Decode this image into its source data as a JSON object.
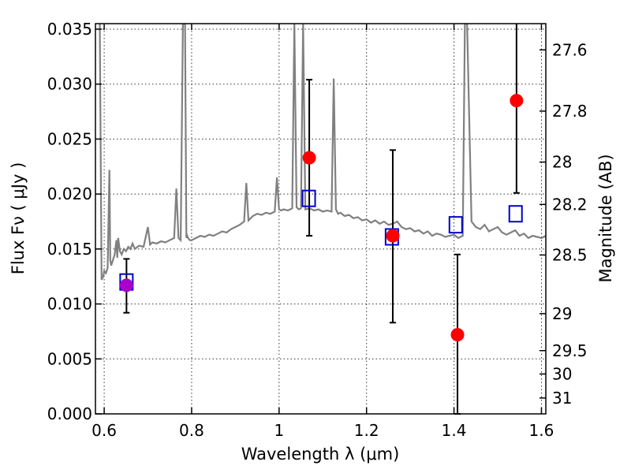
{
  "chart_data": {
    "type": "scatter",
    "xlabel": "Wavelength  λ (μm)",
    "ylabel": "Flux  Fν  ( μJy )",
    "ylabel_right": "Magnitude (AB)",
    "xlim": [
      0.58,
      1.61
    ],
    "ylim": [
      0.0,
      0.0355
    ],
    "x_ticks": [
      0.6,
      0.8,
      1.0,
      1.2,
      1.4,
      1.6
    ],
    "x_tick_labels": [
      "0.6",
      "0.8",
      "1",
      "1.2",
      "1.4",
      "1.6"
    ],
    "y_ticks": [
      0.0,
      0.005,
      0.01,
      0.015,
      0.02,
      0.025,
      0.03,
      0.035
    ],
    "y_tick_labels": [
      "0.000",
      "0.005",
      "0.010",
      "0.015",
      "0.020",
      "0.025",
      "0.030",
      "0.035"
    ],
    "right_ticks": [
      {
        "label": "27.6",
        "value": 27.6
      },
      {
        "label": "27.8",
        "value": 27.8
      },
      {
        "label": "28",
        "value": 28.0
      },
      {
        "label": "28.2",
        "value": 28.2
      },
      {
        "label": "28.5",
        "value": 28.5
      },
      {
        "label": "29",
        "value": 29.0
      },
      {
        "label": "29.5",
        "value": 29.5
      },
      {
        "label": "30",
        "value": 30.0
      },
      {
        "label": "31",
        "value": 31.0
      }
    ],
    "grid": true,
    "colors": {
      "spectrum": "#808080",
      "observed": "#ff0000",
      "observed_first": "#aa00cc",
      "model": "#0000cc",
      "errorbar": "#000000"
    },
    "spectrum": {
      "x": [
        0.59,
        0.594,
        0.598,
        0.6,
        0.604,
        0.608,
        0.612,
        0.614,
        0.616,
        0.62,
        0.624,
        0.628,
        0.63,
        0.632,
        0.636,
        0.64,
        0.645,
        0.65,
        0.655,
        0.66,
        0.665,
        0.67,
        0.68,
        0.69,
        0.7,
        0.705,
        0.71,
        0.72,
        0.73,
        0.74,
        0.75,
        0.76,
        0.765,
        0.77,
        0.775,
        0.78,
        0.785,
        0.788,
        0.79,
        0.792,
        0.796,
        0.8,
        0.81,
        0.82,
        0.83,
        0.84,
        0.85,
        0.86,
        0.87,
        0.88,
        0.89,
        0.9,
        0.91,
        0.92,
        0.925,
        0.93,
        0.935,
        0.94,
        0.95,
        0.96,
        0.97,
        0.98,
        0.99,
        0.995,
        1.0,
        1.005,
        1.01,
        1.02,
        1.03,
        1.035,
        1.04,
        1.045,
        1.05,
        1.055,
        1.06,
        1.07,
        1.08,
        1.09,
        1.1,
        1.11,
        1.12,
        1.125,
        1.13,
        1.135,
        1.14,
        1.15,
        1.16,
        1.17,
        1.18,
        1.19,
        1.2,
        1.21,
        1.22,
        1.23,
        1.24,
        1.25,
        1.26,
        1.27,
        1.28,
        1.29,
        1.3,
        1.31,
        1.32,
        1.33,
        1.34,
        1.35,
        1.36,
        1.37,
        1.38,
        1.39,
        1.4,
        1.41,
        1.42,
        1.425,
        1.43,
        1.44,
        1.45,
        1.46,
        1.47,
        1.48,
        1.49,
        1.5,
        1.51,
        1.52,
        1.53,
        1.54,
        1.55,
        1.56,
        1.57,
        1.58,
        1.59,
        1.6,
        1.61
      ],
      "y": [
        0.0355,
        0.0122,
        0.0125,
        0.013,
        0.0128,
        0.0133,
        0.0222,
        0.014,
        0.0135,
        0.014,
        0.0145,
        0.0158,
        0.0142,
        0.016,
        0.0148,
        0.0145,
        0.015,
        0.0148,
        0.0152,
        0.015,
        0.0155,
        0.015,
        0.0153,
        0.0152,
        0.017,
        0.0154,
        0.0156,
        0.0155,
        0.0157,
        0.0156,
        0.0158,
        0.016,
        0.0205,
        0.016,
        0.0158,
        0.0355,
        0.0355,
        0.016,
        0.0162,
        0.016,
        0.0158,
        0.0158,
        0.016,
        0.0162,
        0.0161,
        0.0163,
        0.0162,
        0.0164,
        0.0166,
        0.0165,
        0.0168,
        0.017,
        0.0172,
        0.0175,
        0.021,
        0.0176,
        0.0178,
        0.018,
        0.0182,
        0.0181,
        0.0183,
        0.0182,
        0.0184,
        0.0215,
        0.0186,
        0.0185,
        0.0186,
        0.0185,
        0.0187,
        0.0355,
        0.0188,
        0.0186,
        0.0187,
        0.0355,
        0.0186,
        0.0187,
        0.0185,
        0.0186,
        0.0184,
        0.0185,
        0.0184,
        0.0305,
        0.0186,
        0.0182,
        0.0183,
        0.018,
        0.0181,
        0.0178,
        0.0179,
        0.0176,
        0.0177,
        0.0174,
        0.0176,
        0.0173,
        0.0175,
        0.0172,
        0.0173,
        0.0175,
        0.017,
        0.0168,
        0.0169,
        0.0166,
        0.0167,
        0.0164,
        0.0166,
        0.0162,
        0.0164,
        0.0163,
        0.0161,
        0.0162,
        0.0163,
        0.016,
        0.0162,
        0.0355,
        0.0355,
        0.0175,
        0.017,
        0.0168,
        0.0172,
        0.0166,
        0.0168,
        0.017,
        0.0165,
        0.0163,
        0.0165,
        0.0167,
        0.0162,
        0.0164,
        0.016,
        0.0162,
        0.0161,
        0.016,
        0.0162
      ]
    },
    "observed": [
      {
        "x": 0.651,
        "y": 0.0117,
        "yerr_low": 0.0092,
        "yerr_high": 0.0141
      },
      {
        "x": 1.069,
        "y": 0.0233,
        "yerr_low": 0.0162,
        "yerr_high": 0.0304
      },
      {
        "x": 1.26,
        "y": 0.0162,
        "yerr_low": 0.0083,
        "yerr_high": 0.024
      },
      {
        "x": 1.408,
        "y": 0.0072,
        "yerr_low": 0.0,
        "yerr_high": 0.0145
      },
      {
        "x": 1.543,
        "y": 0.0285,
        "yerr_low": 0.0201,
        "yerr_high": 0.0355
      }
    ],
    "model": [
      {
        "x": 0.651,
        "y": 0.012
      },
      {
        "x": 1.068,
        "y": 0.0196
      },
      {
        "x": 1.258,
        "y": 0.0161
      },
      {
        "x": 1.404,
        "y": 0.0172
      },
      {
        "x": 1.541,
        "y": 0.0182
      }
    ]
  }
}
